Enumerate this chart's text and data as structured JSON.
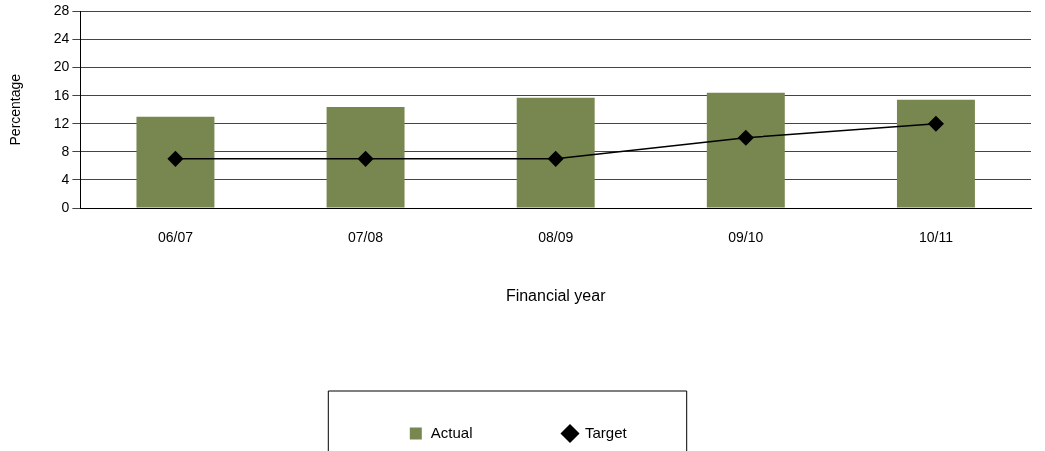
{
  "chart_data": {
    "type": "bar",
    "xlabel": "Financial year",
    "ylabel": "Percentage",
    "categories": [
      "06/07",
      "07/08",
      "08/09",
      "09/10",
      "10/11"
    ],
    "series": [
      {
        "name": "Actual",
        "color": "#77874f",
        "values": [
          13,
          14.4,
          15.7,
          16.4,
          15.4
        ]
      },
      {
        "name": "Target",
        "type": "line",
        "color": "#000000",
        "values": [
          7,
          7,
          7,
          10,
          12
        ],
        "marker": "diamond",
        "line_style": "solid"
      }
    ],
    "ylim": [
      0,
      28
    ],
    "yticks": [
      0,
      4,
      8,
      12,
      16,
      20,
      24,
      28
    ],
    "grid": "y",
    "legend": "bottom"
  }
}
